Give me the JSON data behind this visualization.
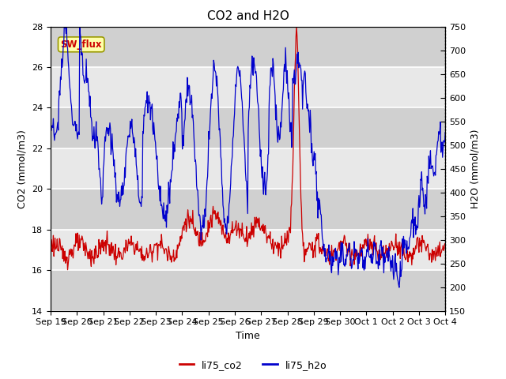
{
  "title": "CO2 and H2O",
  "xlabel": "Time",
  "ylabel_left": "CO2 (mmol/m3)",
  "ylabel_right": "H2O (mmol/m3)",
  "ylim_left": [
    14,
    28
  ],
  "ylim_right": [
    150,
    750
  ],
  "yticks_left": [
    14,
    16,
    18,
    20,
    22,
    24,
    26,
    28
  ],
  "yticks_right": [
    150,
    200,
    250,
    300,
    350,
    400,
    450,
    500,
    550,
    600,
    650,
    700,
    750
  ],
  "xtick_labels": [
    "Sep 19",
    "Sep 20",
    "Sep 21",
    "Sep 22",
    "Sep 23",
    "Sep 24",
    "Sep 25",
    "Sep 26",
    "Sep 27",
    "Sep 28",
    "Sep 29",
    "Sep 30",
    "Oct 1",
    "Oct 2",
    "Oct 3",
    "Oct 4"
  ],
  "color_co2": "#cc0000",
  "color_h2o": "#0000cc",
  "legend_label_co2": "li75_co2",
  "legend_label_h2o": "li75_h2o",
  "sw_flux_box_facecolor": "#ffffaa",
  "sw_flux_box_edgecolor": "#999900",
  "sw_flux_text_color": "#cc0000",
  "plot_bg_light": "#e8e8e8",
  "plot_bg_dark": "#d0d0d0",
  "grid_color": "#ffffff",
  "title_fontsize": 11,
  "label_fontsize": 9,
  "tick_fontsize": 8
}
